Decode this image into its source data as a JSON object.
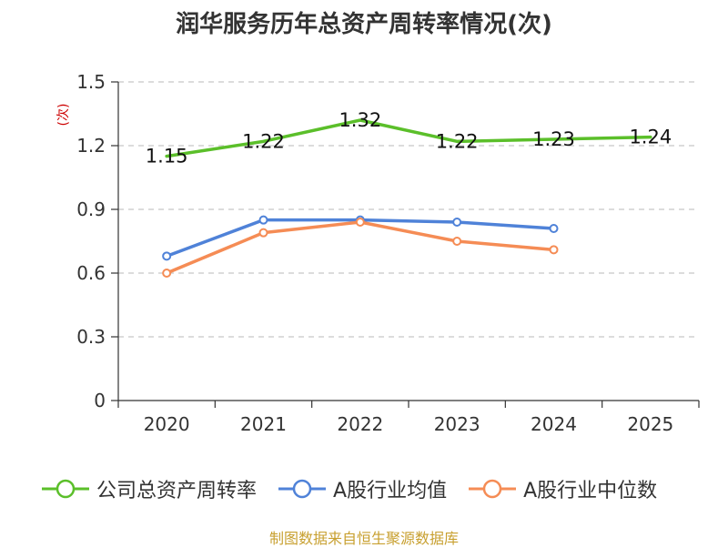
{
  "title": "润华服务历年总资产周转率情况(次)",
  "source": "制图数据来自恒生聚源数据库",
  "chart_data": {
    "type": "line",
    "title": "润华服务历年总资产周转率情况(次)",
    "xlabel": "",
    "ylabel": "(次)",
    "categories": [
      "2020",
      "2021",
      "2022",
      "2023",
      "2024",
      "2025"
    ],
    "ylim": [
      0,
      1.5
    ],
    "yticks": [
      "0",
      "0.3",
      "0.6",
      "0.9",
      "1.2",
      "1.5"
    ],
    "grid": true,
    "legend_position": "bottom",
    "series": [
      {
        "name": "公司总资产周转率",
        "color": "#5bbf2a",
        "marker": "none",
        "show_labels": true,
        "labels": [
          "1.15",
          "1.22",
          "1.32",
          "1.22",
          "1.23",
          "1.24"
        ],
        "values": [
          1.15,
          1.22,
          1.32,
          1.22,
          1.23,
          1.24
        ]
      },
      {
        "name": "A股行业均值",
        "color": "#4f82d8",
        "marker": "circle",
        "show_labels": false,
        "values": [
          0.68,
          0.85,
          0.85,
          0.84,
          0.81,
          null
        ]
      },
      {
        "name": "A股行业中位数",
        "color": "#f58c55",
        "marker": "circle",
        "show_labels": false,
        "values": [
          0.6,
          0.79,
          0.84,
          0.75,
          0.71,
          null
        ]
      }
    ]
  }
}
